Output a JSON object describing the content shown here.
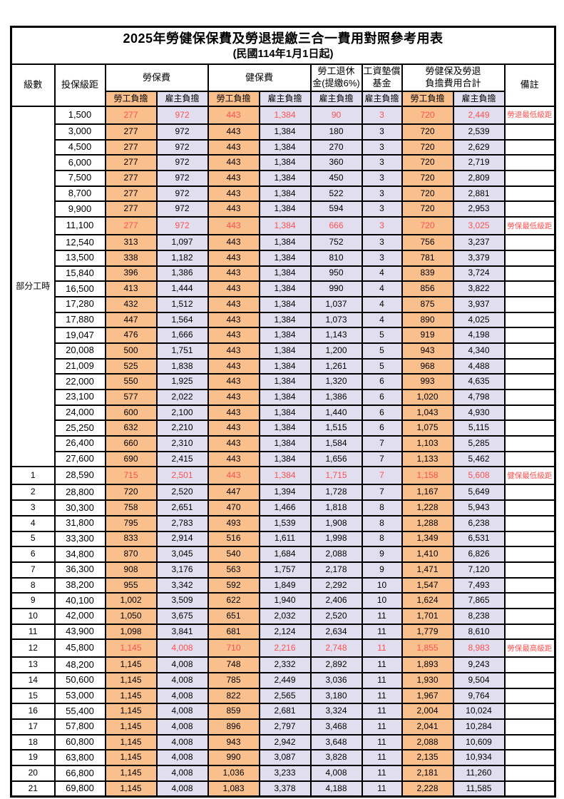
{
  "title": "2025年勞健保保費及勞退提繳三合一費用對照參考用表",
  "subtitle": "(民國114年1月1日起)",
  "colors": {
    "employee_bg": "#F9C08D",
    "employer_bg": "#E1DEEF",
    "highlight_text": "#FF5050",
    "border": "#000000"
  },
  "header": {
    "level": "級數",
    "bracket": "投保級距",
    "labor_fee": "勞保費",
    "health_fee": "健保費",
    "pension_line1": "勞工退休",
    "pension_line2": "金(提繳6%)",
    "fund_line1": "工資墊償",
    "fund_line2": "基金",
    "total_line1": "勞健保及勞退",
    "total_line2": "負擔費用合計",
    "note": "備註",
    "employee_share": "勞工負擔",
    "employer_share": "雇主負擔"
  },
  "part_time_label": "部分工時",
  "part_time_rowspan": 23,
  "rows": [
    {
      "cells": [
        "",
        "1,500",
        "277",
        "972",
        "443",
        "1,384",
        "90",
        "3",
        "720",
        "2,449",
        "勞退最低級距"
      ],
      "special": true
    },
    {
      "cells": [
        "",
        "3,000",
        "277",
        "972",
        "443",
        "1,384",
        "180",
        "3",
        "720",
        "2,539",
        ""
      ],
      "special": false
    },
    {
      "cells": [
        "",
        "4,500",
        "277",
        "972",
        "443",
        "1,384",
        "270",
        "3",
        "720",
        "2,629",
        ""
      ],
      "special": false
    },
    {
      "cells": [
        "",
        "6,000",
        "277",
        "972",
        "443",
        "1,384",
        "360",
        "3",
        "720",
        "2,719",
        ""
      ],
      "special": false
    },
    {
      "cells": [
        "",
        "7,500",
        "277",
        "972",
        "443",
        "1,384",
        "450",
        "3",
        "720",
        "2,809",
        ""
      ],
      "special": false
    },
    {
      "cells": [
        "",
        "8,700",
        "277",
        "972",
        "443",
        "1,384",
        "522",
        "3",
        "720",
        "2,881",
        ""
      ],
      "special": false
    },
    {
      "cells": [
        "",
        "9,900",
        "277",
        "972",
        "443",
        "1,384",
        "594",
        "3",
        "720",
        "2,953",
        ""
      ],
      "special": false
    },
    {
      "cells": [
        "",
        "11,100",
        "277",
        "972",
        "443",
        "1,384",
        "666",
        "3",
        "720",
        "3,025",
        "勞保最低級距"
      ],
      "special": true
    },
    {
      "cells": [
        "",
        "12,540",
        "313",
        "1,097",
        "443",
        "1,384",
        "752",
        "3",
        "756",
        "3,237",
        ""
      ],
      "special": false
    },
    {
      "cells": [
        "",
        "13,500",
        "338",
        "1,182",
        "443",
        "1,384",
        "810",
        "3",
        "781",
        "3,379",
        ""
      ],
      "special": false
    },
    {
      "cells": [
        "",
        "15,840",
        "396",
        "1,386",
        "443",
        "1,384",
        "950",
        "4",
        "839",
        "3,724",
        ""
      ],
      "special": false
    },
    {
      "cells": [
        "",
        "16,500",
        "413",
        "1,444",
        "443",
        "1,384",
        "990",
        "4",
        "856",
        "3,822",
        ""
      ],
      "special": false
    },
    {
      "cells": [
        "",
        "17,280",
        "432",
        "1,512",
        "443",
        "1,384",
        "1,037",
        "4",
        "875",
        "3,937",
        ""
      ],
      "special": false
    },
    {
      "cells": [
        "",
        "17,880",
        "447",
        "1,564",
        "443",
        "1,384",
        "1,073",
        "4",
        "890",
        "4,025",
        ""
      ],
      "special": false
    },
    {
      "cells": [
        "",
        "19,047",
        "476",
        "1,666",
        "443",
        "1,384",
        "1,143",
        "5",
        "919",
        "4,198",
        ""
      ],
      "special": false
    },
    {
      "cells": [
        "",
        "20,008",
        "500",
        "1,751",
        "443",
        "1,384",
        "1,200",
        "5",
        "943",
        "4,340",
        ""
      ],
      "special": false
    },
    {
      "cells": [
        "",
        "21,009",
        "525",
        "1,838",
        "443",
        "1,384",
        "1,261",
        "5",
        "968",
        "4,488",
        ""
      ],
      "special": false
    },
    {
      "cells": [
        "",
        "22,000",
        "550",
        "1,925",
        "443",
        "1,384",
        "1,320",
        "6",
        "993",
        "4,635",
        ""
      ],
      "special": false
    },
    {
      "cells": [
        "",
        "23,100",
        "577",
        "2,022",
        "443",
        "1,384",
        "1,386",
        "6",
        "1,020",
        "4,798",
        ""
      ],
      "special": false
    },
    {
      "cells": [
        "",
        "24,000",
        "600",
        "2,100",
        "443",
        "1,384",
        "1,440",
        "6",
        "1,043",
        "4,930",
        ""
      ],
      "special": false
    },
    {
      "cells": [
        "",
        "25,250",
        "632",
        "2,210",
        "443",
        "1,384",
        "1,515",
        "6",
        "1,075",
        "5,115",
        ""
      ],
      "special": false
    },
    {
      "cells": [
        "",
        "26,400",
        "660",
        "2,310",
        "443",
        "1,384",
        "1,584",
        "7",
        "1,103",
        "5,285",
        ""
      ],
      "special": false
    },
    {
      "cells": [
        "",
        "27,600",
        "690",
        "2,415",
        "443",
        "1,384",
        "1,656",
        "7",
        "1,133",
        "5,462",
        ""
      ],
      "special": false
    },
    {
      "cells": [
        "1",
        "28,590",
        "715",
        "2,501",
        "443",
        "1,384",
        "1,715",
        "7",
        "1,158",
        "5,608",
        "健保最低級距"
      ],
      "special": true
    },
    {
      "cells": [
        "2",
        "28,800",
        "720",
        "2,520",
        "447",
        "1,394",
        "1,728",
        "7",
        "1,167",
        "5,649",
        ""
      ],
      "special": false
    },
    {
      "cells": [
        "3",
        "30,300",
        "758",
        "2,651",
        "470",
        "1,466",
        "1,818",
        "8",
        "1,228",
        "5,943",
        ""
      ],
      "special": false
    },
    {
      "cells": [
        "4",
        "31,800",
        "795",
        "2,783",
        "493",
        "1,539",
        "1,908",
        "8",
        "1,288",
        "6,238",
        ""
      ],
      "special": false
    },
    {
      "cells": [
        "5",
        "33,300",
        "833",
        "2,914",
        "516",
        "1,611",
        "1,998",
        "8",
        "1,349",
        "6,531",
        ""
      ],
      "special": false
    },
    {
      "cells": [
        "6",
        "34,800",
        "870",
        "3,045",
        "540",
        "1,684",
        "2,088",
        "9",
        "1,410",
        "6,826",
        ""
      ],
      "special": false
    },
    {
      "cells": [
        "7",
        "36,300",
        "908",
        "3,176",
        "563",
        "1,757",
        "2,178",
        "9",
        "1,471",
        "7,120",
        ""
      ],
      "special": false
    },
    {
      "cells": [
        "8",
        "38,200",
        "955",
        "3,342",
        "592",
        "1,849",
        "2,292",
        "10",
        "1,547",
        "7,493",
        ""
      ],
      "special": false
    },
    {
      "cells": [
        "9",
        "40,100",
        "1,002",
        "3,509",
        "622",
        "1,940",
        "2,406",
        "10",
        "1,624",
        "7,865",
        ""
      ],
      "special": false
    },
    {
      "cells": [
        "10",
        "42,000",
        "1,050",
        "3,675",
        "651",
        "2,032",
        "2,520",
        "11",
        "1,701",
        "8,238",
        ""
      ],
      "special": false
    },
    {
      "cells": [
        "11",
        "43,900",
        "1,098",
        "3,841",
        "681",
        "2,124",
        "2,634",
        "11",
        "1,779",
        "8,610",
        ""
      ],
      "special": false
    },
    {
      "cells": [
        "12",
        "45,800",
        "1,145",
        "4,008",
        "710",
        "2,216",
        "2,748",
        "11",
        "1,855",
        "8,983",
        "勞保最高級距"
      ],
      "special": true
    },
    {
      "cells": [
        "13",
        "48,200",
        "1,145",
        "4,008",
        "748",
        "2,332",
        "2,892",
        "11",
        "1,893",
        "9,243",
        ""
      ],
      "special": false
    },
    {
      "cells": [
        "14",
        "50,600",
        "1,145",
        "4,008",
        "785",
        "2,449",
        "3,036",
        "11",
        "1,930",
        "9,504",
        ""
      ],
      "special": false
    },
    {
      "cells": [
        "15",
        "53,000",
        "1,145",
        "4,008",
        "822",
        "2,565",
        "3,180",
        "11",
        "1,967",
        "9,764",
        ""
      ],
      "special": false
    },
    {
      "cells": [
        "16",
        "55,400",
        "1,145",
        "4,008",
        "859",
        "2,681",
        "3,324",
        "11",
        "2,004",
        "10,024",
        ""
      ],
      "special": false
    },
    {
      "cells": [
        "17",
        "57,800",
        "1,145",
        "4,008",
        "896",
        "2,797",
        "3,468",
        "11",
        "2,041",
        "10,284",
        ""
      ],
      "special": false
    },
    {
      "cells": [
        "18",
        "60,800",
        "1,145",
        "4,008",
        "943",
        "2,942",
        "3,648",
        "11",
        "2,088",
        "10,609",
        ""
      ],
      "special": false
    },
    {
      "cells": [
        "19",
        "63,800",
        "1,145",
        "4,008",
        "990",
        "3,087",
        "3,828",
        "11",
        "2,135",
        "10,934",
        ""
      ],
      "special": false
    },
    {
      "cells": [
        "20",
        "66,800",
        "1,145",
        "4,008",
        "1,036",
        "3,233",
        "4,008",
        "11",
        "2,181",
        "11,260",
        ""
      ],
      "special": false
    },
    {
      "cells": [
        "21",
        "69,800",
        "1,145",
        "4,008",
        "1,083",
        "3,378",
        "4,188",
        "11",
        "2,228",
        "11,585",
        ""
      ],
      "special": false
    }
  ]
}
